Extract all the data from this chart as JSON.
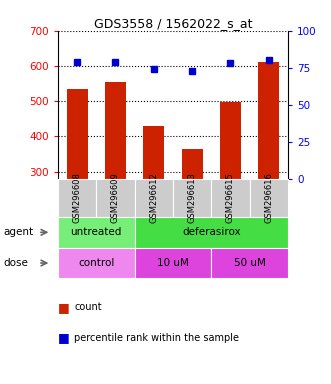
{
  "title": "GDS3558 / 1562022_s_at",
  "samples": [
    "GSM296608",
    "GSM296609",
    "GSM296612",
    "GSM296613",
    "GSM296615",
    "GSM296616"
  ],
  "bar_values": [
    535,
    553,
    430,
    365,
    498,
    610
  ],
  "percentile_values": [
    79,
    79,
    74,
    73,
    78,
    80
  ],
  "bar_color": "#cc2200",
  "dot_color": "#0000cc",
  "ylim_left": [
    280,
    700
  ],
  "ylim_right": [
    0,
    100
  ],
  "yticks_left": [
    300,
    400,
    500,
    600,
    700
  ],
  "yticks_right": [
    0,
    25,
    50,
    75,
    100
  ],
  "agent_untreated_color": "#77ee77",
  "agent_deferasirox_color": "#44dd44",
  "dose_control_color": "#ee88ee",
  "dose_uM_color": "#dd44dd",
  "xtick_bg_color": "#cccccc",
  "legend_count_color": "#cc2200",
  "legend_dot_color": "#0000cc"
}
